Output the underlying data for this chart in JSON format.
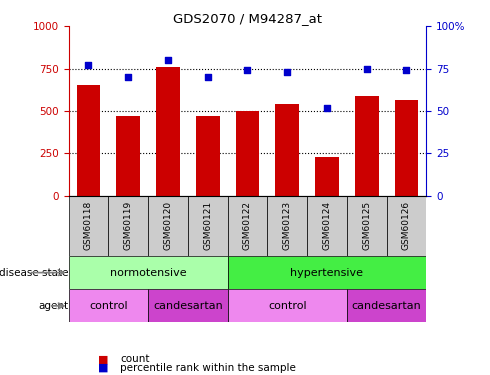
{
  "title": "GDS2070 / M94287_at",
  "samples": [
    "GSM60118",
    "GSM60119",
    "GSM60120",
    "GSM60121",
    "GSM60122",
    "GSM60123",
    "GSM60124",
    "GSM60125",
    "GSM60126"
  ],
  "count_values": [
    650,
    470,
    760,
    470,
    500,
    540,
    230,
    590,
    565
  ],
  "percentile_values": [
    77,
    70,
    80,
    70,
    74,
    73,
    52,
    75,
    74
  ],
  "ylim_left": [
    0,
    1000
  ],
  "ylim_right": [
    0,
    100
  ],
  "yticks_left": [
    0,
    250,
    500,
    750,
    1000
  ],
  "yticks_right": [
    0,
    25,
    50,
    75,
    100
  ],
  "ytick_right_labels": [
    "0",
    "25",
    "50",
    "75",
    "100%"
  ],
  "bar_color": "#cc0000",
  "dot_color": "#0000cc",
  "disease_state_groups": [
    {
      "label": "normotensive",
      "start": 0,
      "end": 4,
      "color": "#aaffaa"
    },
    {
      "label": "hypertensive",
      "start": 4,
      "end": 9,
      "color": "#44ee44"
    }
  ],
  "agent_groups": [
    {
      "label": "control",
      "start": 0,
      "end": 2,
      "color": "#ee88ee"
    },
    {
      "label": "candesartan",
      "start": 2,
      "end": 4,
      "color": "#cc44cc"
    },
    {
      "label": "control",
      "start": 4,
      "end": 7,
      "color": "#ee88ee"
    },
    {
      "label": "candesartan",
      "start": 7,
      "end": 9,
      "color": "#cc44cc"
    }
  ],
  "left_label_color": "#cc0000",
  "right_label_color": "#0000cc",
  "sample_bg": "#cccccc",
  "legend_count_color": "#cc0000",
  "legend_pct_color": "#0000cc"
}
